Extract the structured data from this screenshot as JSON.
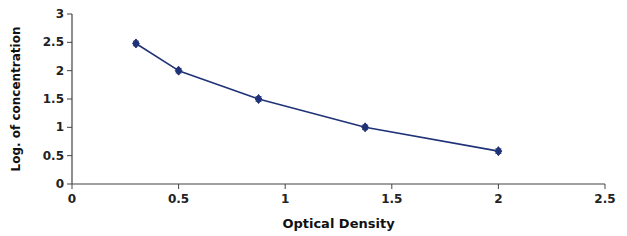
{
  "chart_data": {
    "type": "line",
    "xlabel": "Optical Density",
    "ylabel": "Log. of concentration",
    "x": [
      0.3,
      0.5,
      0.875,
      1.375,
      2.0
    ],
    "values": [
      2.48,
      2.0,
      1.5,
      1.0,
      0.58
    ],
    "error": 0.04,
    "color": "#1F3278",
    "marker": "diamond",
    "line_style": "solid",
    "xlim": [
      0,
      2.5
    ],
    "ylim": [
      0,
      3
    ],
    "xticks": [
      0,
      0.5,
      1,
      1.5,
      2,
      2.5
    ],
    "yticks": [
      0,
      0.5,
      1,
      1.5,
      2,
      2.5,
      3
    ],
    "grid": false
  }
}
